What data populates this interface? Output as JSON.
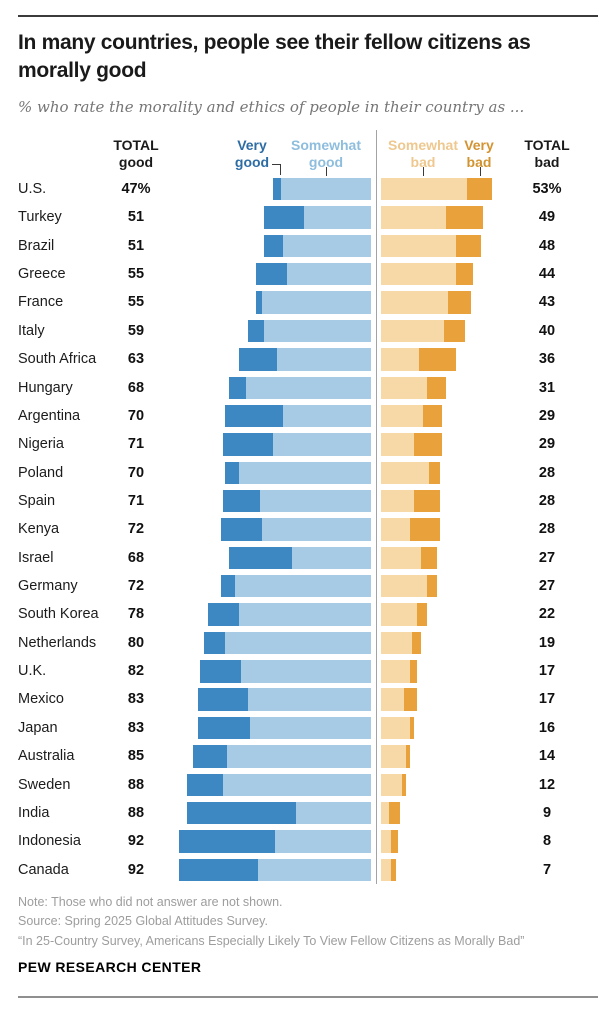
{
  "header": {
    "title": "In many countries, people see their fellow citizens as\nmorally good",
    "subtitle": "% who rate the morality and ethics of people in their country as ..."
  },
  "columns": {
    "total_good": "TOTAL\ngood",
    "very_good": "Very\ngood",
    "somewhat_good": "Somewhat\ngood",
    "somewhat_bad": "Somewhat\nbad",
    "very_bad": "Very\nbad",
    "total_bad": "TOTAL\nbad"
  },
  "colors": {
    "very_good_bar": "#3d87c2",
    "somewhat_good_bar": "#a7cbe4",
    "somewhat_bad_bar": "#f6d9a7",
    "very_bad_bar": "#e9a13b",
    "very_good_label": "#2e6da4",
    "somewhat_good_label": "#8ebddd",
    "somewhat_bad_label": "#eec88f",
    "very_bad_label": "#d29432"
  },
  "chart_data": {
    "type": "bar",
    "subtype": "horizontal-diverging-stacked",
    "title": "In many countries, people see their fellow citizens as morally good",
    "subtitle": "% who rate the morality and ethics of people in their country as ...",
    "legend_position": "top",
    "axis_note": "good stacked leftward from center line, bad stacked rightward; totals labeled at both ends",
    "categories": [
      "U.S.",
      "Turkey",
      "Brazil",
      "Greece",
      "France",
      "Italy",
      "South Africa",
      "Hungary",
      "Argentina",
      "Nigeria",
      "Poland",
      "Spain",
      "Kenya",
      "Israel",
      "Germany",
      "South Korea",
      "Netherlands",
      "U.K.",
      "Mexico",
      "Japan",
      "Australia",
      "Sweden",
      "India",
      "Indonesia",
      "Canada"
    ],
    "series": [
      {
        "name": "Very good",
        "values": [
          4,
          19,
          9,
          15,
          3,
          8,
          18,
          8,
          28,
          24,
          7,
          18,
          20,
          30,
          7,
          15,
          10,
          20,
          24,
          25,
          16,
          17,
          52,
          46,
          38
        ]
      },
      {
        "name": "Somewhat good",
        "values": [
          43,
          32,
          42,
          40,
          52,
          51,
          45,
          60,
          42,
          47,
          63,
          53,
          52,
          38,
          65,
          63,
          70,
          62,
          59,
          58,
          69,
          71,
          36,
          46,
          54
        ]
      },
      {
        "name": "Somewhat bad",
        "values": [
          41,
          31,
          36,
          36,
          32,
          30,
          18,
          22,
          20,
          16,
          23,
          16,
          14,
          19,
          22,
          17,
          15,
          14,
          11,
          14,
          12,
          10,
          4,
          5,
          5
        ]
      },
      {
        "name": "Very bad",
        "values": [
          12,
          18,
          12,
          8,
          11,
          10,
          18,
          9,
          9,
          13,
          5,
          12,
          14,
          8,
          5,
          5,
          4,
          3,
          6,
          2,
          2,
          2,
          5,
          3,
          2
        ]
      }
    ],
    "totals": {
      "good_labels": [
        "47%",
        "51",
        "51",
        "55",
        "55",
        "59",
        "63",
        "68",
        "70",
        "71",
        "70",
        "71",
        "72",
        "68",
        "72",
        "78",
        "80",
        "82",
        "83",
        "83",
        "85",
        "88",
        "88",
        "92",
        "92"
      ],
      "bad_labels": [
        "53%",
        "49",
        "48",
        "44",
        "43",
        "40",
        "36",
        "31",
        "29",
        "29",
        "28",
        "28",
        "28",
        "27",
        "27",
        "22",
        "19",
        "17",
        "17",
        "16",
        "14",
        "12",
        "9",
        "8",
        "7"
      ]
    }
  },
  "footer": {
    "note": "Note: Those who did not answer are not shown.",
    "source": "Source: Spring 2025 Global Attitudes Survey.",
    "report": "“In 25-Country Survey, Americans Especially Likely To View Fellow Citizens as Morally Bad”",
    "wordmark": "PEW RESEARCH CENTER"
  }
}
